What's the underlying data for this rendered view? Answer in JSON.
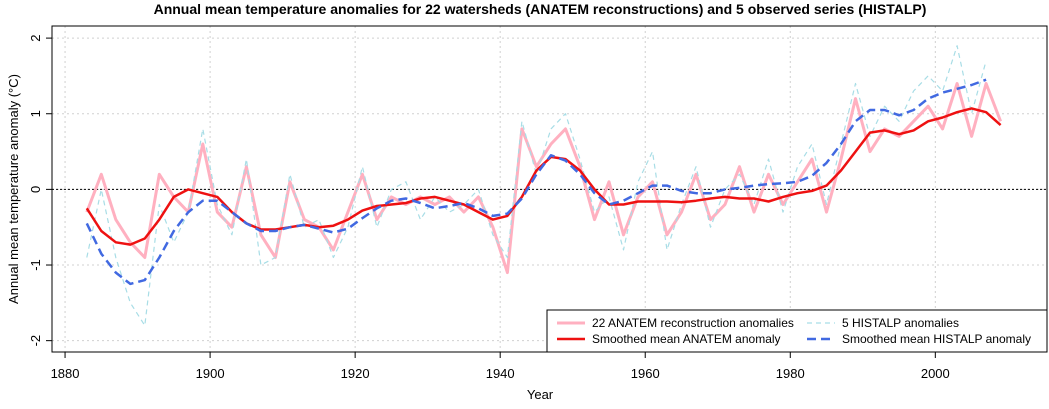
{
  "chart_data": {
    "type": "line",
    "title": "Annual mean temperature anomalies for 22 watersheds (ANATEM reconstructions) and 5 observed series (HISTALP)",
    "x_label": "Year",
    "y_label": "Annual mean temperature anomaly (°C)",
    "x": [
      1883,
      1885,
      1887,
      1889,
      1891,
      1893,
      1895,
      1897,
      1899,
      1901,
      1903,
      1905,
      1907,
      1909,
      1911,
      1913,
      1915,
      1917,
      1919,
      1921,
      1923,
      1925,
      1927,
      1929,
      1931,
      1933,
      1935,
      1937,
      1939,
      1941,
      1943,
      1945,
      1947,
      1949,
      1951,
      1953,
      1955,
      1957,
      1959,
      1961,
      1963,
      1965,
      1967,
      1969,
      1971,
      1973,
      1975,
      1977,
      1979,
      1981,
      1983,
      1985,
      1987,
      1989,
      1991,
      1993,
      1995,
      1997,
      1999,
      2001,
      2003,
      2005,
      2007,
      2009
    ],
    "series": [
      {
        "name": "22 ANATEM reconstruction anomalies",
        "color": "#ffb0c0",
        "line_width": 3,
        "dashed": false,
        "values": [
          -0.3,
          0.2,
          -0.4,
          -0.7,
          -0.9,
          0.2,
          -0.1,
          -0.3,
          0.6,
          -0.3,
          -0.5,
          0.3,
          -0.6,
          -0.9,
          0.1,
          -0.4,
          -0.5,
          -0.8,
          -0.3,
          0.2,
          -0.4,
          -0.1,
          -0.2,
          -0.1,
          -0.2,
          -0.1,
          -0.3,
          -0.1,
          -0.5,
          -1.1,
          0.8,
          0.3,
          0.6,
          0.8,
          0.3,
          -0.4,
          0.1,
          -0.6,
          -0.1,
          0.1,
          -0.6,
          -0.3,
          0.2,
          -0.4,
          -0.2,
          0.3,
          -0.3,
          0.2,
          -0.2,
          0.1,
          0.4,
          -0.3,
          0.4,
          1.2,
          0.5,
          0.8,
          0.7,
          0.9,
          1.1,
          0.8,
          1.4,
          0.7,
          1.4,
          0.9
        ]
      },
      {
        "name": "5 HISTALP anomalies",
        "color": "#a8dde6",
        "line_width": 1.2,
        "dashed": true,
        "values": [
          -0.9,
          0.0,
          -0.9,
          -1.5,
          -1.8,
          -0.2,
          -0.7,
          -0.3,
          0.8,
          -0.2,
          -0.6,
          0.4,
          -1.0,
          -0.9,
          0.2,
          -0.5,
          -0.4,
          -0.9,
          -0.5,
          0.3,
          -0.5,
          0.0,
          0.1,
          -0.4,
          -0.1,
          -0.3,
          -0.2,
          0.0,
          -0.6,
          -0.9,
          0.9,
          0.2,
          0.8,
          1.0,
          0.4,
          -0.3,
          -0.1,
          -0.8,
          0.1,
          0.5,
          -0.8,
          -0.2,
          0.3,
          -0.5,
          0.0,
          0.2,
          -0.2,
          0.4,
          -0.3,
          0.3,
          0.6,
          -0.2,
          0.6,
          1.4,
          0.7,
          1.1,
          0.9,
          1.3,
          1.5,
          1.3,
          1.9,
          1.0,
          1.7,
          null
        ]
      },
      {
        "name": "Smoothed mean ANATEM anomaly",
        "color": "#ee1111",
        "line_width": 2.5,
        "dashed": false,
        "values": [
          -0.25,
          -0.55,
          -0.7,
          -0.73,
          -0.65,
          -0.4,
          -0.1,
          0.0,
          -0.05,
          -0.1,
          -0.3,
          -0.45,
          -0.53,
          -0.53,
          -0.5,
          -0.47,
          -0.5,
          -0.48,
          -0.4,
          -0.28,
          -0.22,
          -0.2,
          -0.18,
          -0.12,
          -0.1,
          -0.15,
          -0.2,
          -0.3,
          -0.4,
          -0.35,
          -0.1,
          0.25,
          0.43,
          0.4,
          0.25,
          0.0,
          -0.2,
          -0.2,
          -0.16,
          -0.16,
          -0.16,
          -0.17,
          -0.15,
          -0.12,
          -0.1,
          -0.12,
          -0.12,
          -0.16,
          -0.1,
          -0.05,
          -0.02,
          0.05,
          0.25,
          0.5,
          0.75,
          0.78,
          0.73,
          0.78,
          0.9,
          0.95,
          1.02,
          1.07,
          1.02,
          0.85
        ]
      },
      {
        "name": "Smoothed mean HISTALP anomaly",
        "color": "#4169e1",
        "line_width": 2.5,
        "dashed": true,
        "values": [
          -0.45,
          -0.85,
          -1.1,
          -1.25,
          -1.2,
          -0.9,
          -0.55,
          -0.3,
          -0.15,
          -0.15,
          -0.3,
          -0.45,
          -0.55,
          -0.55,
          -0.5,
          -0.47,
          -0.52,
          -0.57,
          -0.52,
          -0.38,
          -0.25,
          -0.15,
          -0.12,
          -0.18,
          -0.25,
          -0.22,
          -0.18,
          -0.25,
          -0.35,
          -0.32,
          -0.12,
          0.2,
          0.45,
          0.38,
          0.2,
          -0.05,
          -0.2,
          -0.15,
          -0.05,
          0.05,
          0.05,
          -0.02,
          -0.05,
          -0.05,
          0.0,
          0.02,
          0.05,
          0.07,
          0.08,
          0.1,
          0.18,
          0.35,
          0.6,
          0.9,
          1.05,
          1.05,
          0.98,
          1.05,
          1.2,
          1.28,
          1.33,
          1.38,
          1.45,
          null
        ]
      }
    ],
    "xlim": [
      1878.2,
      2015.4
    ],
    "xticks": [
      1880,
      1900,
      1920,
      1940,
      1960,
      1980,
      2000
    ],
    "ylim": [
      -2.15,
      2.16
    ],
    "yticks": [
      -2,
      -1,
      0,
      1,
      2
    ],
    "reference_line": 0,
    "grid": true,
    "legend": "lower right"
  }
}
